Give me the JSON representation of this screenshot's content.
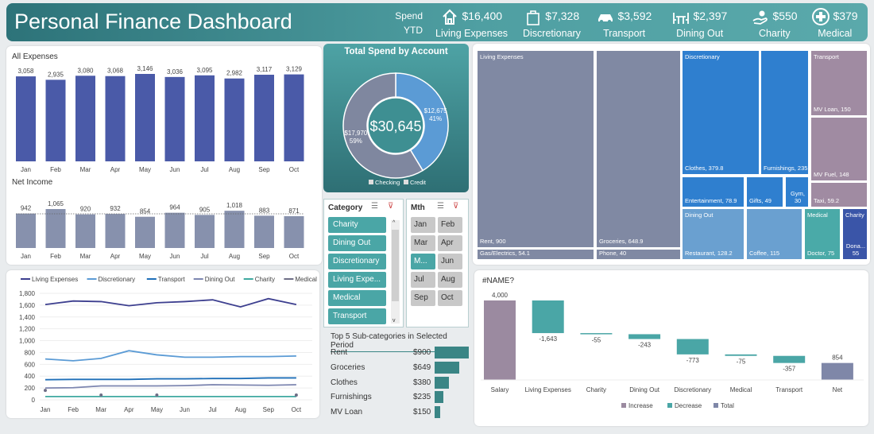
{
  "header": {
    "title": "Personal Finance Dashboard",
    "spend_label_1": "Spend",
    "spend_label_2": "YTD",
    "kpis": [
      {
        "icon": "house-icon",
        "value": "$16,400",
        "label": "Living Expenses"
      },
      {
        "icon": "shopping-bag-icon",
        "value": "$7,328",
        "label": "Discretionary"
      },
      {
        "icon": "car-icon",
        "value": "$3,592",
        "label": "Transport"
      },
      {
        "icon": "dining-table-icon",
        "value": "$2,397",
        "label": "Dining Out"
      },
      {
        "icon": "charity-hand-icon",
        "value": "$550",
        "label": "Charity"
      },
      {
        "icon": "medical-cross-icon",
        "value": "$379",
        "label": "Medical"
      }
    ]
  },
  "chart_data": [
    {
      "type": "bar",
      "title": "All Expenses",
      "categories": [
        "Jan",
        "Feb",
        "Mar",
        "Apr",
        "May",
        "Jun",
        "Jul",
        "Aug",
        "Sep",
        "Oct"
      ],
      "values": [
        3058,
        2935,
        3080,
        3068,
        3146,
        3036,
        3095,
        2982,
        3117,
        3129
      ],
      "labels": [
        "3,058",
        "2,935",
        "3,080",
        "3,068",
        "3,146",
        "3,036",
        "3,095",
        "2,982",
        "3,117",
        "3,129"
      ],
      "color": "#4a5aa8"
    },
    {
      "type": "bar",
      "title": "Net Income",
      "categories": [
        "Jan",
        "Feb",
        "Mar",
        "Apr",
        "May",
        "Jun",
        "Jul",
        "Aug",
        "Sep",
        "Oct"
      ],
      "values": [
        942,
        1065,
        920,
        932,
        854,
        964,
        905,
        1018,
        883,
        871
      ],
      "labels": [
        "942",
        "1,065",
        "920",
        "932",
        "854",
        "964",
        "905",
        "1,018",
        "883",
        "871"
      ],
      "color": "#8791ad",
      "average_line": true
    },
    {
      "type": "line",
      "categories": [
        "Jan",
        "Feb",
        "Mar",
        "Apr",
        "May",
        "Jun",
        "Jul",
        "Aug",
        "Sep",
        "Oct"
      ],
      "ylim": [
        0,
        1800
      ],
      "yticks": [
        "0",
        "200",
        "400",
        "600",
        "800",
        "1,000",
        "1,200",
        "1,400",
        "1,600",
        "1,800"
      ],
      "legend": "top",
      "series": [
        {
          "name": "Living Expenses",
          "color": "#3d3f8f",
          "values": [
            1610,
            1670,
            1660,
            1590,
            1640,
            1660,
            1690,
            1570,
            1710,
            1610
          ]
        },
        {
          "name": "Discretionary",
          "color": "#5b9bd5",
          "values": [
            690,
            660,
            700,
            830,
            760,
            720,
            720,
            730,
            730,
            740
          ]
        },
        {
          "name": "Transport",
          "color": "#1f6fb8",
          "values": [
            340,
            345,
            345,
            345,
            355,
            355,
            360,
            360,
            370,
            370
          ]
        },
        {
          "name": "Dining Out",
          "color": "#7d86b0",
          "values": [
            200,
            205,
            235,
            235,
            235,
            240,
            255,
            250,
            245,
            255
          ]
        },
        {
          "name": "Charity",
          "color": "#3fa9a0",
          "values": [
            55,
            55,
            55,
            55,
            55,
            55,
            55,
            55,
            55,
            55
          ]
        },
        {
          "name": "Medical",
          "color": "#6e6e86",
          "values": [
            160,
            null,
            80,
            null,
            80,
            null,
            null,
            null,
            null,
            80
          ],
          "markers": true
        }
      ]
    },
    {
      "type": "pie",
      "title": "Total Spend by Account",
      "center_label": "$30,645",
      "slices": [
        {
          "name": "Checking",
          "value": 12675,
          "label": "$12,675",
          "pct": "41%",
          "color": "#5b9bd5"
        },
        {
          "name": "Credit",
          "value": 17970,
          "label": "$17,970",
          "pct": "59%",
          "color": "#7f879f"
        }
      ]
    },
    {
      "type": "bar",
      "title": "#NAME?",
      "subtype": "waterfall",
      "categories": [
        "Salary",
        "Living Expenses",
        "Charity",
        "Dining Out",
        "Discretionary",
        "Medical",
        "Transport",
        "Net"
      ],
      "values": [
        4000,
        -1643,
        -55,
        -243,
        -773,
        -75,
        -357,
        854
      ],
      "labels": [
        "4,000",
        "-1,643",
        "-55",
        "-243",
        "-773",
        "-75",
        "-357",
        "854"
      ],
      "legend": [
        "Increase",
        "Decrease",
        "Total"
      ],
      "colors": {
        "increase": "#9b8aa0",
        "decrease": "#4aa6a6",
        "total": "#7f87a8"
      }
    }
  ],
  "treemap": {
    "groups": [
      {
        "name": "Living Expenses",
        "color": "#8089a3",
        "items": [
          {
            "label": "Rent, 900"
          },
          {
            "label": "Gas/Electrics, 54.1"
          },
          {
            "label": "Groceries, 648.9"
          },
          {
            "label": "Phone, 40"
          }
        ]
      },
      {
        "name": "Discretionary",
        "color": "#2f7fcf",
        "items": [
          {
            "label": "Clothes, 379.8"
          },
          {
            "label": "Furnishings, 235"
          },
          {
            "label": "Entertainment, 78.9"
          },
          {
            "label": "Gifts, 49"
          },
          {
            "label": "Gym, 30"
          }
        ]
      },
      {
        "name": "Transport",
        "color": "#a08ba2",
        "items": [
          {
            "label": "MV Loan, 150"
          },
          {
            "label": "MV Fuel, 148"
          },
          {
            "label": "Taxi, 59.2"
          }
        ]
      },
      {
        "name": "Dining Out",
        "color": "#6aa0d0",
        "items": [
          {
            "label": "Restaurant, 128.2"
          },
          {
            "label": "Coffee, 115"
          }
        ]
      },
      {
        "name": "Medical",
        "color": "#4aaaa8",
        "items": [
          {
            "label": "Doctor, 75"
          }
        ]
      },
      {
        "name": "Charity",
        "color": "#3a55a8",
        "items": [
          {
            "label": "Dona... 55"
          }
        ]
      }
    ]
  },
  "slicers": {
    "category": {
      "title": "Category",
      "items": [
        "Charity",
        "Dining Out",
        "Discretionary",
        "Living Expe...",
        "Medical",
        "Transport"
      ]
    },
    "month": {
      "title": "Mth",
      "items": [
        "Jan",
        "Feb",
        "Mar",
        "Apr",
        "M...",
        "Jun",
        "Jul",
        "Aug",
        "Sep",
        "Oct"
      ],
      "selected": "M..."
    }
  },
  "top5": {
    "title": "Top 5 Sub-categories in Selected Period",
    "rows": [
      {
        "name": "Rent",
        "value": "$900",
        "amount": 900
      },
      {
        "name": "Groceries",
        "value": "$649",
        "amount": 649
      },
      {
        "name": "Clothes",
        "value": "$380",
        "amount": 380
      },
      {
        "name": "Furnishings",
        "value": "$235",
        "amount": 235
      },
      {
        "name": "MV Loan",
        "value": "$150",
        "amount": 150
      }
    ],
    "color": "#3a8585"
  }
}
